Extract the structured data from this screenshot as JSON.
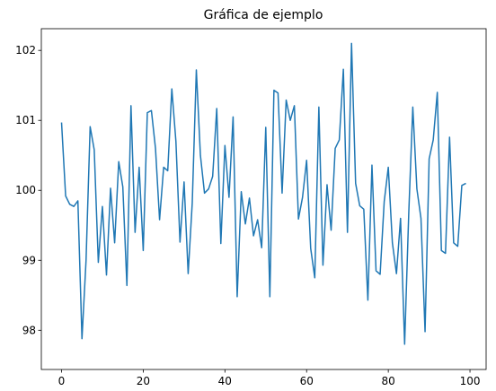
{
  "chart_data": {
    "type": "line",
    "title": "Gráfica de ejemplo",
    "x": [
      0,
      1,
      2,
      3,
      4,
      5,
      6,
      7,
      8,
      9,
      10,
      11,
      12,
      13,
      14,
      15,
      16,
      17,
      18,
      19,
      20,
      21,
      22,
      23,
      24,
      25,
      26,
      27,
      28,
      29,
      30,
      31,
      32,
      33,
      34,
      35,
      36,
      37,
      38,
      39,
      40,
      41,
      42,
      43,
      44,
      45,
      46,
      47,
      48,
      49,
      50,
      51,
      52,
      53,
      54,
      55,
      56,
      57,
      58,
      59,
      60,
      61,
      62,
      63,
      64,
      65,
      66,
      67,
      68,
      69,
      70,
      71,
      72,
      73,
      74,
      75,
      76,
      77,
      78,
      79,
      80,
      81,
      82,
      83,
      84,
      85,
      86,
      87,
      88,
      89,
      90,
      91,
      92,
      93,
      94,
      95,
      96,
      97,
      98,
      99
    ],
    "series": [
      {
        "color": "#1f77b4",
        "values": [
          100.97,
          99.92,
          99.8,
          99.77,
          99.85,
          97.88,
          99.0,
          100.91,
          100.58,
          98.97,
          99.77,
          98.79,
          100.03,
          99.25,
          100.41,
          100.05,
          98.64,
          101.21,
          99.4,
          100.33,
          99.14,
          101.11,
          101.14,
          100.6,
          99.58,
          100.33,
          100.28,
          101.45,
          100.7,
          99.26,
          100.12,
          98.81,
          99.82,
          101.72,
          100.5,
          99.96,
          100.02,
          100.2,
          101.17,
          99.24,
          100.64,
          99.9,
          101.05,
          98.48,
          99.98,
          99.52,
          99.89,
          99.35,
          99.58,
          99.18,
          100.9,
          98.48,
          101.43,
          101.39,
          99.96,
          101.29,
          101.0,
          101.21,
          99.59,
          99.9,
          100.43,
          99.17,
          98.75,
          101.19,
          98.93,
          100.08,
          99.43,
          100.6,
          100.72,
          101.73,
          99.4,
          102.1,
          100.1,
          99.78,
          99.73,
          98.43,
          100.36,
          98.85,
          98.8,
          99.84,
          100.33,
          99.25,
          98.81,
          99.6,
          97.8,
          99.66,
          101.19,
          100.02,
          99.6,
          97.98,
          100.45,
          100.72,
          101.4,
          99.14,
          99.1,
          100.76,
          99.25,
          99.2,
          100.07,
          100.1
        ]
      }
    ],
    "xlim": [
      -4.95,
      103.95
    ],
    "xticks": [
      0,
      20,
      40,
      60,
      80,
      100
    ],
    "ylim": [
      97.44,
      102.31
    ],
    "yticks": [
      98,
      99,
      100,
      101,
      102
    ],
    "grid": false
  }
}
